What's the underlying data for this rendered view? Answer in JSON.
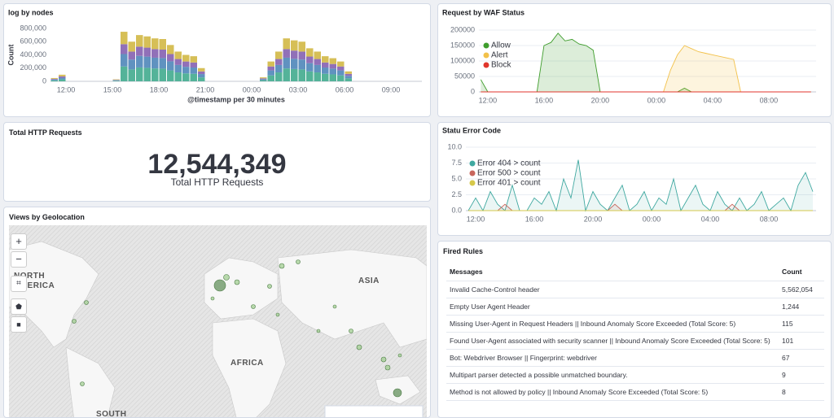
{
  "chart_data": [
    {
      "type": "bar",
      "stacked": true,
      "title": "log by nodes",
      "y_label": "Count",
      "x_label": "@timestamp per 30 minutes",
      "grid": false,
      "categories": [
        null,
        null,
        "12:00",
        null,
        null,
        null,
        null,
        null,
        "15:00",
        null,
        null,
        null,
        null,
        null,
        "18:00",
        null,
        null,
        null,
        null,
        null,
        "21:00",
        null,
        null,
        null,
        null,
        null,
        "00:00",
        null,
        null,
        null,
        null,
        null,
        "03:00",
        null,
        null,
        null,
        null,
        null,
        "06:00",
        null,
        null,
        null,
        null,
        null,
        "09:00",
        null,
        null,
        null
      ],
      "ylim": [
        0,
        800000
      ],
      "yticks": [
        0,
        {
          "value": 200000,
          "label": "200,000"
        },
        {
          "value": 400000,
          "label": "400,000"
        },
        {
          "value": 600000,
          "label": "600,000"
        },
        {
          "value": 800000,
          "label": "800,000"
        }
      ],
      "series": [
        {
          "color": "#54b399",
          "values": [
            15000,
            30000,
            0,
            0,
            0,
            0,
            0,
            0,
            9000,
            225000,
            180000,
            210000,
            204000,
            195000,
            192000,
            165000,
            135000,
            120000,
            114000,
            60000,
            0,
            0,
            0,
            0,
            0,
            0,
            0,
            18000,
            90000,
            135000,
            195000,
            186000,
            180000,
            150000,
            135000,
            114000,
            105000,
            90000,
            45000,
            0,
            0,
            0,
            0,
            0,
            0,
            0,
            0,
            0
          ]
        },
        {
          "color": "#6092c0",
          "values": [
            12500,
            25000,
            0,
            0,
            0,
            0,
            0,
            0,
            7500,
            187500,
            150000,
            175000,
            170000,
            162500,
            160000,
            137500,
            112500,
            100000,
            95000,
            50000,
            0,
            0,
            0,
            0,
            0,
            0,
            0,
            15000,
            75000,
            112500,
            162500,
            155000,
            150000,
            125000,
            112500,
            95000,
            87500,
            75000,
            37500,
            0,
            0,
            0,
            0,
            0,
            0,
            0,
            0,
            0
          ]
        },
        {
          "color": "#9170b8",
          "values": [
            10000,
            20000,
            0,
            0,
            0,
            0,
            0,
            0,
            6000,
            150000,
            120000,
            140000,
            136000,
            130000,
            128000,
            110000,
            90000,
            80000,
            76000,
            40000,
            0,
            0,
            0,
            0,
            0,
            0,
            0,
            12000,
            60000,
            90000,
            130000,
            124000,
            120000,
            100000,
            90000,
            76000,
            70000,
            60000,
            30000,
            0,
            0,
            0,
            0,
            0,
            0,
            0,
            0,
            0
          ]
        },
        {
          "color": "#d6bf57",
          "values": [
            12500,
            25000,
            0,
            0,
            0,
            0,
            0,
            0,
            7500,
            187500,
            150000,
            175000,
            170000,
            162500,
            160000,
            137500,
            112500,
            100000,
            95000,
            50000,
            0,
            0,
            0,
            0,
            0,
            0,
            0,
            15000,
            75000,
            112500,
            162500,
            155000,
            150000,
            125000,
            112500,
            95000,
            87500,
            75000,
            37500,
            0,
            0,
            0,
            0,
            0,
            0,
            0,
            0,
            0
          ]
        }
      ]
    },
    {
      "type": "area",
      "title": "Request by WAF Status",
      "grid": true,
      "legend": "top-left",
      "categories": [
        null,
        "12:00",
        null,
        null,
        null,
        null,
        null,
        null,
        null,
        "16:00",
        null,
        null,
        null,
        null,
        null,
        null,
        null,
        "20:00",
        null,
        null,
        null,
        null,
        null,
        null,
        null,
        "00:00",
        null,
        null,
        null,
        null,
        null,
        null,
        null,
        "04:00",
        null,
        null,
        null,
        null,
        null,
        null,
        null,
        "08:00",
        null,
        null,
        null,
        null,
        null,
        null
      ],
      "ylim": [
        0,
        200000
      ],
      "yticks": [
        0,
        50000,
        100000,
        150000,
        200000
      ],
      "series": [
        {
          "name": "Allow",
          "color": "#3f9d2c",
          "values": [
            40000,
            0,
            0,
            0,
            0,
            0,
            0,
            0,
            0,
            150000,
            160000,
            190000,
            165000,
            170000,
            155000,
            150000,
            135000,
            0,
            0,
            0,
            0,
            0,
            0,
            0,
            0,
            0,
            0,
            0,
            0,
            12000,
            0,
            0,
            0,
            0,
            0,
            0,
            0,
            0,
            0,
            0,
            0,
            0,
            0,
            0,
            0,
            0,
            0,
            0
          ]
        },
        {
          "name": "Alert",
          "color": "#f2c14a",
          "values": [
            0,
            0,
            0,
            0,
            0,
            0,
            0,
            0,
            0,
            0,
            0,
            0,
            0,
            0,
            0,
            0,
            0,
            0,
            0,
            0,
            0,
            0,
            0,
            0,
            0,
            0,
            0,
            70000,
            120000,
            150000,
            140000,
            130000,
            125000,
            120000,
            115000,
            110000,
            105000,
            0,
            0,
            0,
            0,
            0,
            0,
            0,
            0,
            0,
            0,
            0
          ]
        },
        {
          "name": "Block",
          "color": "#e0362c",
          "values": [
            0,
            0,
            0,
            0,
            0,
            0,
            0,
            0,
            0,
            0,
            0,
            0,
            0,
            0,
            0,
            0,
            0,
            0,
            0,
            0,
            0,
            0,
            0,
            0,
            0,
            0,
            0,
            0,
            0,
            0,
            0,
            0,
            0,
            0,
            0,
            0,
            0,
            0,
            0,
            0,
            0,
            0,
            0,
            0,
            0,
            0,
            0,
            0
          ]
        }
      ]
    },
    {
      "type": "line",
      "title": "Statu Error Code",
      "grid": true,
      "legend": "top-left",
      "categories": [
        null,
        "12:00",
        null,
        null,
        null,
        null,
        null,
        null,
        null,
        "16:00",
        null,
        null,
        null,
        null,
        null,
        null,
        null,
        "20:00",
        null,
        null,
        null,
        null,
        null,
        null,
        null,
        "00:00",
        null,
        null,
        null,
        null,
        null,
        null,
        null,
        "04:00",
        null,
        null,
        null,
        null,
        null,
        null,
        null,
        "08:00",
        null,
        null,
        null,
        null,
        null,
        null
      ],
      "ylim": [
        0,
        10
      ],
      "yticks": [
        {
          "value": 0,
          "label": "0.0"
        },
        2.5,
        {
          "value": 5,
          "label": "5.0"
        },
        7.5,
        {
          "value": 10,
          "label": "10.0"
        }
      ],
      "series": [
        {
          "name": "Error 404 > count",
          "color": "#3fa8a0",
          "values": [
            0,
            2,
            0,
            3,
            1,
            0,
            4,
            0,
            0,
            2,
            1,
            3,
            0,
            5,
            2,
            8,
            0,
            3,
            1,
            0,
            2,
            4,
            0,
            1,
            3,
            0,
            2,
            1,
            5,
            0,
            2,
            4,
            1,
            0,
            3,
            1,
            0,
            2,
            0,
            1,
            3,
            0,
            1,
            2,
            0,
            4,
            6,
            3
          ]
        },
        {
          "name": "Error 500 > count",
          "color": "#c8665c",
          "values": [
            0,
            0,
            0,
            0,
            0,
            1,
            0,
            0,
            0,
            0,
            0,
            0,
            0,
            0,
            0,
            0,
            0,
            0,
            0,
            0,
            1,
            0,
            0,
            0,
            0,
            0,
            0,
            0,
            0,
            0,
            0,
            0,
            0,
            0,
            0,
            0,
            1,
            0,
            0,
            0,
            0,
            0,
            0,
            0,
            0,
            0,
            0,
            0
          ]
        },
        {
          "name": "Error 401 > count",
          "color": "#d6c84a",
          "values": [
            0,
            0,
            0,
            0,
            0,
            0,
            0,
            0,
            0,
            0,
            0,
            0,
            0,
            0,
            0,
            0,
            0,
            0,
            0,
            0,
            0,
            0,
            0,
            0,
            0,
            0,
            0,
            0,
            0,
            0,
            0,
            0,
            0,
            0,
            0,
            0,
            0,
            0,
            0,
            0,
            0,
            0,
            0,
            0,
            0,
            0,
            0,
            0
          ]
        }
      ]
    }
  ],
  "total_requests": {
    "title": "Total HTTP Requests",
    "value": "12,544,349",
    "label": "Total HTTP Requests"
  },
  "map": {
    "title": "Views by Geolocation",
    "labels": [
      "NORTH AMERICA",
      "ASIA",
      "AFRICA",
      "SOUTH"
    ]
  },
  "fired_rules": {
    "title": "Fired Rules",
    "columns": [
      "Messages",
      "Count"
    ],
    "rows": [
      [
        "Invalid Cache-Control header",
        "5,562,054"
      ],
      [
        "Empty User Agent Header",
        "1,244"
      ],
      [
        "Missing User-Agent in Request Headers || Inbound Anomaly Score Exceeded (Total Score: 5)",
        "115"
      ],
      [
        "Found User-Agent associated with security scanner || Inbound Anomaly Score Exceeded (Total Score: 5)",
        "101"
      ],
      [
        "Bot: Webdriver Browser || Fingerprint: webdriver",
        "67"
      ],
      [
        "Multipart parser detected a possible unmatched boundary.",
        "9"
      ],
      [
        "Method is not allowed by policy || Inbound Anomaly Score Exceeded (Total Score: 5)",
        "8"
      ]
    ]
  }
}
